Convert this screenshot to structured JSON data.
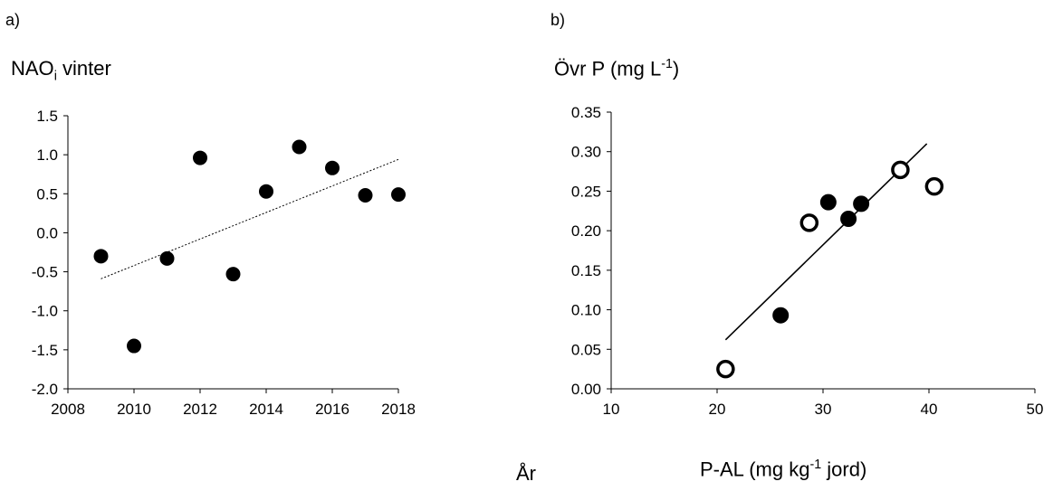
{
  "panels": {
    "a": {
      "label": "a)"
    },
    "b": {
      "label": "b)"
    }
  },
  "chart_data": [
    {
      "type": "scatter",
      "title": "",
      "ylabel": {
        "main": "NAO",
        "sub": "i",
        "rest": " vinter"
      },
      "xlabel": "År",
      "xlim": [
        2008,
        2018
      ],
      "ylim": [
        -2.0,
        1.5
      ],
      "xticks": [
        "2008",
        "2010",
        "2012",
        "2014",
        "2016",
        "2018"
      ],
      "yticks": [
        "-2.0",
        "-1.5",
        "-1.0",
        "-0.5",
        "0.0",
        "0.5",
        "1.0",
        "1.5"
      ],
      "grid": false,
      "series": [
        {
          "marker": "filled-circle",
          "x": [
            2009,
            2010,
            2011,
            2012,
            2013,
            2014,
            2015,
            2016,
            2017,
            2018
          ],
          "y": [
            -0.3,
            -1.45,
            -0.33,
            0.96,
            -0.53,
            0.53,
            1.1,
            0.83,
            0.48,
            0.49
          ]
        }
      ],
      "trendline": {
        "style": "dotted",
        "x": [
          2009,
          2018
        ],
        "y": [
          -0.59,
          0.94
        ]
      }
    },
    {
      "type": "scatter",
      "title": "",
      "ylabel": {
        "main": "Övr P (mg L",
        "sup": "-1",
        "rest": ")"
      },
      "xlabel": {
        "main": "P-AL (mg kg",
        "sup": "-1",
        "rest": "  jord)"
      },
      "xlim": [
        10,
        50
      ],
      "ylim": [
        0,
        0.35
      ],
      "xticks": [
        "10",
        "20",
        "30",
        "40",
        "50"
      ],
      "yticks": [
        "0.00",
        "0.05",
        "0.10",
        "0.15",
        "0.20",
        "0.25",
        "0.30",
        "0.35"
      ],
      "grid": false,
      "series": [
        {
          "marker": "open-circle",
          "x": [
            20.8,
            28.7,
            37.3,
            40.5
          ],
          "y": [
            0.025,
            0.21,
            0.277,
            0.256
          ]
        },
        {
          "marker": "filled-circle",
          "x": [
            26.0,
            30.5,
            32.4,
            33.6
          ],
          "y": [
            0.093,
            0.236,
            0.215,
            0.234
          ]
        }
      ],
      "trendline": {
        "style": "solid",
        "x": [
          20.8,
          39.8
        ],
        "y": [
          0.062,
          0.31
        ]
      }
    }
  ]
}
